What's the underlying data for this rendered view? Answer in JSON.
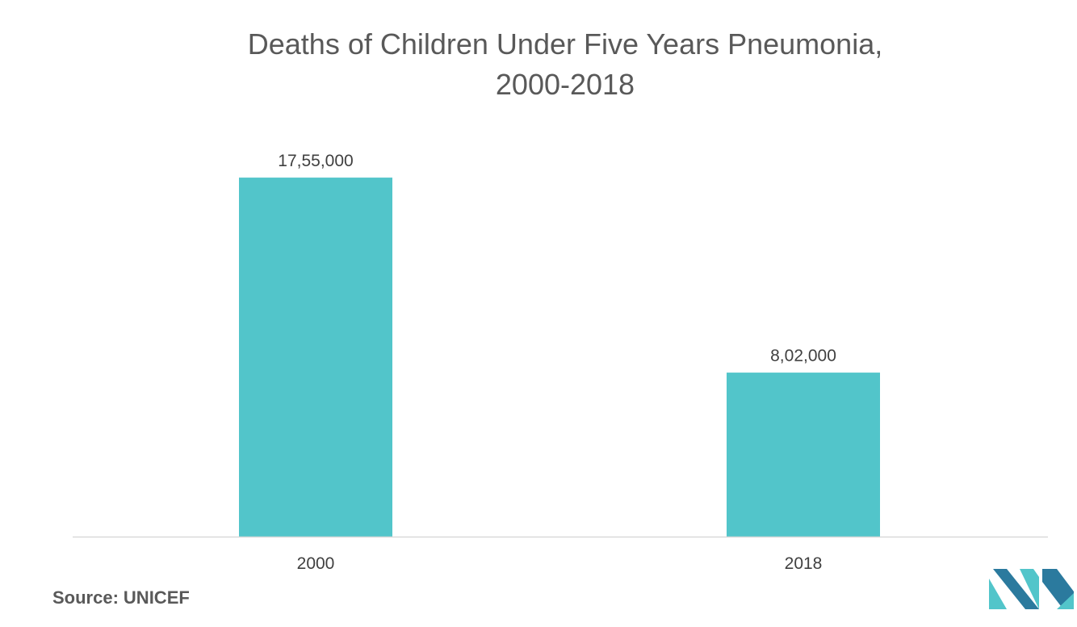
{
  "chart_data": {
    "type": "bar",
    "title": "Deaths of Children Under Five Years Pneumonia,",
    "subtitle": "2000-2018",
    "categories": [
      "2000",
      "2018"
    ],
    "values": [
      1755000,
      802000
    ],
    "value_labels": [
      "17,55,000",
      "8,02,000"
    ],
    "xlabel": "",
    "ylabel": "",
    "ylim": [
      0,
      2000000
    ],
    "grid": false,
    "bar_color": "#52c5ca"
  },
  "source": {
    "label": "Source:",
    "value": "UNICEF"
  },
  "colors": {
    "text": "#595959",
    "axis": "#d9d9d9",
    "logo_dark": "#2b7a9e",
    "logo_light": "#52c5ca"
  }
}
